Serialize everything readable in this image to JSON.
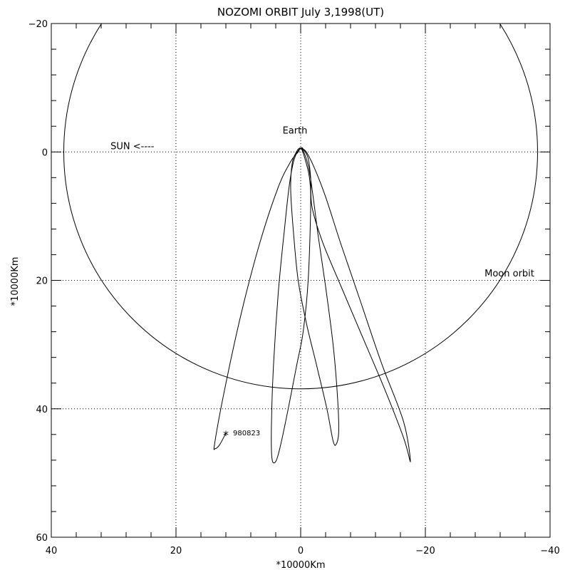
{
  "chart_data": {
    "type": "line",
    "title": "NOZOMI ORBIT July 3,1998(UT)",
    "xlabel": "*10000Km",
    "ylabel": "*10000Km",
    "xlim": [
      40,
      -40
    ],
    "ylim": [
      -20,
      60
    ],
    "x_ticks": [
      40,
      20,
      0,
      -20,
      -40
    ],
    "y_ticks": [
      -20,
      0,
      20,
      40,
      60
    ],
    "x_tick_labels": [
      "40",
      "20",
      "0",
      "−20",
      "−40"
    ],
    "y_tick_labels": [
      "−20",
      "0",
      "20",
      "40",
      "60"
    ],
    "grid": true,
    "moon_orbit_radius": 38,
    "annotations": {
      "earth": {
        "text": "Earth",
        "color": "#33cc33",
        "x": 0,
        "y": 0
      },
      "sun": {
        "text": "SUN <----",
        "color": "#cc2222",
        "x": 30.5,
        "y": -0.4
      },
      "moon": {
        "text": "Moon orbit",
        "color": "#cc3300",
        "x": -29.5,
        "y": 19.4
      },
      "marker": {
        "text": "980823",
        "color": "#cc0000",
        "x": 12,
        "y": 43.8
      }
    },
    "orbit_path": [
      [
        12,
        43.8
      ],
      [
        13,
        45.6
      ],
      [
        13.7,
        46.2
      ],
      [
        13.8,
        45.4
      ],
      [
        12.2,
        37
      ],
      [
        9.5,
        25
      ],
      [
        6.5,
        14
      ],
      [
        3.6,
        5.5
      ],
      [
        1.6,
        1.5
      ],
      [
        0.4,
        0
      ],
      [
        0,
        -0.6
      ],
      [
        -0.5,
        0
      ],
      [
        -1.3,
        2.5
      ],
      [
        -2,
        7
      ],
      [
        -2.8,
        13
      ],
      [
        -4,
        21
      ],
      [
        -5.2,
        30
      ],
      [
        -5.9,
        38
      ],
      [
        -6.1,
        43.5
      ],
      [
        -5.7,
        45.5
      ],
      [
        -5.2,
        45
      ],
      [
        -4.2,
        40
      ],
      [
        -2.5,
        33
      ],
      [
        -1,
        27
      ],
      [
        0.4,
        20
      ],
      [
        1.2,
        12
      ],
      [
        1.6,
        6
      ],
      [
        1.4,
        2
      ],
      [
        0.8,
        0.2
      ],
      [
        0,
        -0.6
      ],
      [
        -0.6,
        0.8
      ],
      [
        -1.4,
        4
      ],
      [
        -1.6,
        8.5
      ],
      [
        -1.2,
        20
      ],
      [
        -0.4,
        28
      ],
      [
        0.6,
        33
      ],
      [
        2,
        40
      ],
      [
        3.3,
        46
      ],
      [
        4,
        48.2
      ],
      [
        4.6,
        47.8
      ],
      [
        4.7,
        43
      ],
      [
        4.4,
        34
      ],
      [
        3.6,
        22
      ],
      [
        2.6,
        12
      ],
      [
        1.8,
        5
      ],
      [
        1,
        1
      ],
      [
        0,
        -0.6
      ],
      [
        -0.5,
        -0.3
      ],
      [
        -1.2,
        1
      ],
      [
        -1.6,
        4
      ],
      [
        -1.8,
        8.5
      ],
      [
        -3.5,
        14
      ],
      [
        -6.5,
        21
      ],
      [
        -10,
        29
      ],
      [
        -13.5,
        37
      ],
      [
        -16.5,
        44.5
      ],
      [
        -17.6,
        48.2
      ],
      [
        -16.5,
        42
      ],
      [
        -13,
        33
      ],
      [
        -9.5,
        23
      ],
      [
        -6.5,
        14.5
      ],
      [
        -4,
        7
      ],
      [
        -2.2,
        2.5
      ],
      [
        -0.9,
        0
      ],
      [
        0,
        -0.6
      ]
    ]
  }
}
